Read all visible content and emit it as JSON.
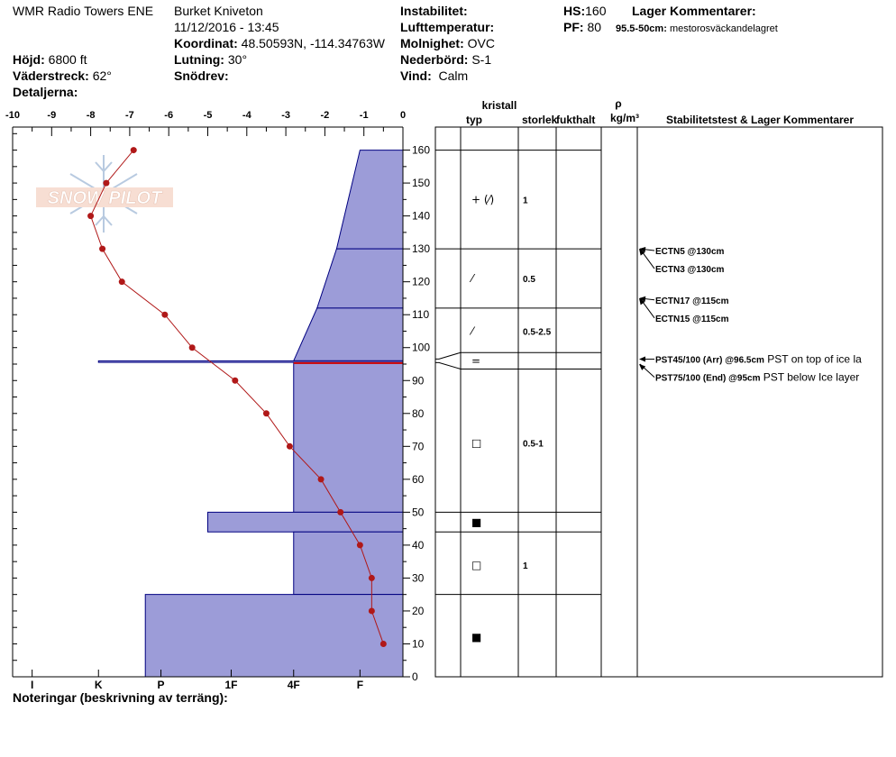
{
  "header": {
    "site": "WMR Radio Towers ENE",
    "observer": "Burket Kniveton",
    "datetime": "11/12/2016 - 13:45",
    "koordinat_label": "Koordinat:",
    "koordinat_value": "48.50593N, -114.34763W",
    "hojd_label": "Höjd:",
    "hojd_value": "6800 ft",
    "lutning_label": "Lutning:",
    "lutning_value": "30°",
    "vaderstreck_label": "Väderstreck:",
    "vaderstreck_value": "62°",
    "snodrev_label": "Snödrev:",
    "snodrev_value": "",
    "detaljerna_label": "Detaljerna:",
    "instabilitet_label": "Instabilitet:",
    "lufttemp_label": "Lufttemperatur:",
    "molnighet_label": "Molnighet:",
    "molnighet_value": "OVC",
    "nederbord_label": "Nederbörd:",
    "nederbord_value": "S-1",
    "vind_label": "Vind:",
    "vind_value": "Calm",
    "hs_label": "HS:",
    "hs_value": "160",
    "pf_label": "PF:",
    "pf_value": "80",
    "lager_label": "Lager Kommentarer:",
    "lager_range": "95.5-50cm:",
    "lager_text": "mestorosväckandelagret"
  },
  "footer": {
    "noteringar": "Noteringar (beskrivning av terräng):"
  },
  "logo": {
    "text": "SNOW PILOT"
  },
  "columns": {
    "kristall": "kristall",
    "typ": "typ",
    "storlek": "storlek",
    "fukthalt": "fukthalt",
    "rho": "ρ",
    "density_unit": "kg/m³",
    "stabilitet": "Stabilitetstest & Lager Kommentarer"
  },
  "chart_data": {
    "type": "line",
    "temperature_axis": {
      "ticks": [
        -10,
        -9,
        -8,
        -7,
        -6,
        -5,
        -4,
        -3,
        -2,
        -1,
        0
      ],
      "tick_labels": [
        "-10",
        "-9",
        "-8",
        "-7",
        "-6",
        "-5",
        "-4",
        "-3",
        "-2",
        "-1",
        "0"
      ],
      "range": [
        -10,
        0
      ]
    },
    "depth_axis": {
      "ticks": [
        0,
        10,
        20,
        30,
        40,
        50,
        60,
        70,
        80,
        90,
        100,
        110,
        120,
        130,
        140,
        150,
        160
      ],
      "tick_labels": [
        "0",
        "10",
        "20",
        "30",
        "40",
        "50",
        "60",
        "70",
        "80",
        "90",
        "100",
        "110",
        "120",
        "130",
        "140",
        "150",
        "160"
      ],
      "range": [
        0,
        167
      ],
      "unit": "cm"
    },
    "hardness_axis": {
      "labels": [
        "I",
        "K",
        "P",
        "1F",
        "4F",
        "F"
      ],
      "values": [
        -9.5,
        -7.8,
        -6.2,
        -4.4,
        -2.8,
        -1.1
      ]
    },
    "temperature_profile": [
      {
        "depth": 160,
        "temp": -6.9
      },
      {
        "depth": 150,
        "temp": -7.6
      },
      {
        "depth": 140,
        "temp": -8.0
      },
      {
        "depth": 130,
        "temp": -7.7
      },
      {
        "depth": 120,
        "temp": -7.2
      },
      {
        "depth": 110,
        "temp": -6.1
      },
      {
        "depth": 100,
        "temp": -5.4
      },
      {
        "depth": 90,
        "temp": -4.3
      },
      {
        "depth": 80,
        "temp": -3.5
      },
      {
        "depth": 70,
        "temp": -2.9
      },
      {
        "depth": 60,
        "temp": -2.1
      },
      {
        "depth": 50,
        "temp": -1.6
      },
      {
        "depth": 40,
        "temp": -1.1
      },
      {
        "depth": 30,
        "temp": -0.8
      },
      {
        "depth": 20,
        "temp": -0.8
      },
      {
        "depth": 10,
        "temp": -0.5
      }
    ],
    "hardness_profile": [
      {
        "top": 160,
        "bottom": 130,
        "hardness_top": -1.1,
        "hardness_bottom": -1.7
      },
      {
        "top": 130,
        "bottom": 112,
        "hardness_top": -1.7,
        "hardness_bottom": -2.2
      },
      {
        "top": 112,
        "bottom": 96,
        "hardness_top": -2.2,
        "hardness_bottom": -2.8
      },
      {
        "top": 96,
        "bottom": 95.5,
        "hardness_top": -7.8,
        "hardness_bottom": -7.8
      },
      {
        "top": 95.5,
        "bottom": 50,
        "hardness_top": -2.8,
        "hardness_bottom": -2.8
      },
      {
        "top": 50,
        "bottom": 44,
        "hardness_top": -5.0,
        "hardness_bottom": -5.0
      },
      {
        "top": 44,
        "bottom": 25,
        "hardness_top": -2.8,
        "hardness_bottom": -2.8
      },
      {
        "top": 25,
        "bottom": 0,
        "hardness_top": -6.6,
        "hardness_bottom": -6.6
      }
    ],
    "weak_layer_depth": 95.3,
    "layer_boundaries": [
      160,
      130,
      112,
      98.5,
      93.5,
      50,
      44,
      25
    ],
    "layers": [
      {
        "symbol_depth": 145,
        "crystal": "+ (⁄)",
        "size": "1"
      },
      {
        "symbol_depth": 121,
        "crystal": "⁄",
        "size": "0.5"
      },
      {
        "symbol_depth": 105,
        "crystal": "⁄",
        "size": "0.5-2.5"
      },
      {
        "symbol_depth": 96,
        "crystal": "=",
        "size": ""
      },
      {
        "symbol_depth": 71,
        "crystal": "□",
        "size": "0.5-1"
      },
      {
        "symbol_depth": 47,
        "crystal": "■",
        "size": ""
      },
      {
        "symbol_depth": 34,
        "crystal": "□",
        "size": "1"
      },
      {
        "symbol_depth": 12,
        "crystal": "■",
        "size": ""
      }
    ],
    "tests": [
      {
        "depth": 130,
        "label": "ECTN5 @130cm",
        "comment": "",
        "label_depth": 129.5
      },
      {
        "depth": 130,
        "label": "ECTN3 @130cm",
        "comment": "",
        "label_depth": 124
      },
      {
        "depth": 115,
        "label": "ECTN17 @115cm",
        "comment": "",
        "label_depth": 114.5
      },
      {
        "depth": 115,
        "label": "ECTN15 @115cm",
        "comment": "",
        "label_depth": 109
      },
      {
        "depth": 96.5,
        "label": "PST45/100 (Arr) @96.5cm",
        "comment": "PST on top of ice la",
        "label_depth": 96.5
      },
      {
        "depth": 95,
        "label": "PST75/100 (End) @95cm",
        "comment": "PST below Ice layer",
        "label_depth": 91
      }
    ],
    "colors": {
      "fill": "#9c9cd8",
      "stroke": "#000080",
      "temp_line": "#b01818",
      "weak_layer": "#cc0000"
    }
  }
}
